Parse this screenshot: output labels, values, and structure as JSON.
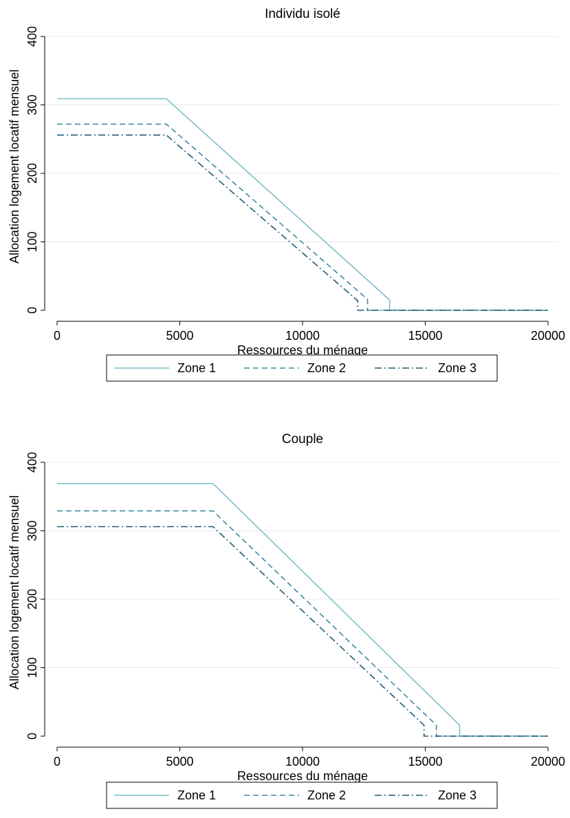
{
  "chart_data": [
    {
      "type": "line",
      "title": "Individu isolé",
      "xlabel": "Ressources du ménage",
      "ylabel": "Allocation logement locatif mensuel",
      "xlim": [
        0,
        20000
      ],
      "ylim": [
        0,
        400
      ],
      "xticks": [
        0,
        5000,
        10000,
        15000,
        20000
      ],
      "yticks": [
        0,
        100,
        200,
        300,
        400
      ],
      "grid": true,
      "legend_position": "bottom",
      "series": [
        {
          "name": "Zone 1",
          "color": "#7cbfc9",
          "dash": "solid",
          "x": [
            0,
            4450,
            13550,
            13550,
            20000
          ],
          "y": [
            309,
            309,
            15,
            0,
            0
          ]
        },
        {
          "name": "Zone 2",
          "color": "#3d8aa0",
          "dash": "dash",
          "x": [
            0,
            4450,
            12650,
            12650,
            20000
          ],
          "y": [
            272,
            272,
            16,
            0,
            0
          ]
        },
        {
          "name": "Zone 3",
          "color": "#1e5a73",
          "dash": "dashdot",
          "x": [
            0,
            4450,
            12250,
            12250,
            20000
          ],
          "y": [
            256,
            256,
            14,
            0,
            0
          ]
        }
      ]
    },
    {
      "type": "line",
      "title": "Couple",
      "xlabel": "Ressources du ménage",
      "ylabel": "Allocation logement locatif mensuel",
      "xlim": [
        0,
        20000
      ],
      "ylim": [
        0,
        400
      ],
      "xticks": [
        0,
        5000,
        10000,
        15000,
        20000
      ],
      "yticks": [
        0,
        100,
        200,
        300,
        400
      ],
      "grid": true,
      "legend_position": "bottom",
      "series": [
        {
          "name": "Zone 1",
          "color": "#7cbfc9",
          "dash": "solid",
          "x": [
            0,
            6350,
            16400,
            16400,
            20000
          ],
          "y": [
            369,
            369,
            16,
            0,
            0
          ]
        },
        {
          "name": "Zone 2",
          "color": "#3d8aa0",
          "dash": "dash",
          "x": [
            0,
            6350,
            15450,
            15450,
            20000
          ],
          "y": [
            329,
            329,
            16,
            0,
            0
          ]
        },
        {
          "name": "Zone 3",
          "color": "#1e5a73",
          "dash": "dashdot",
          "x": [
            0,
            6350,
            14950,
            14950,
            20000
          ],
          "y": [
            306,
            306,
            16,
            0,
            0
          ]
        }
      ]
    }
  ]
}
